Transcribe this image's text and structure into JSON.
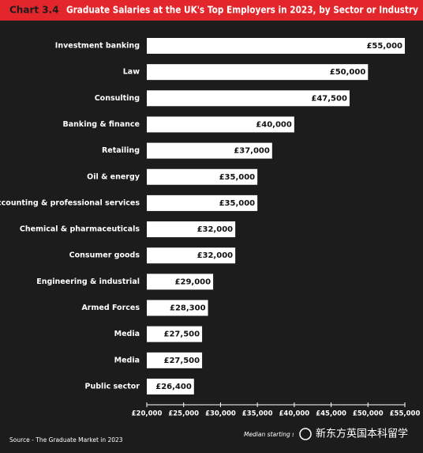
{
  "chart_data": {
    "type": "hbar",
    "chart_number": "Chart 3.4",
    "title": "Graduate Salaries at the UK's Top Employers in 2023, by Sector or Industry",
    "categories": [
      "Investment banking",
      "Law",
      "Consulting",
      "Banking & finance",
      "Retailing",
      "Oil & energy",
      "Accounting & professional services",
      "Chemical & pharmaceuticals",
      "Consumer goods",
      "Engineering & industrial",
      "Armed Forces",
      "Media",
      "Media",
      "Public sector"
    ],
    "values": [
      55000,
      50000,
      47500,
      40000,
      37000,
      35000,
      35000,
      32000,
      32000,
      29000,
      28300,
      27500,
      27500,
      26400
    ],
    "value_labels": [
      "£55,000",
      "£50,000",
      "£47,500",
      "£40,000",
      "£37,000",
      "£35,000",
      "£35,000",
      "£32,000",
      "£32,000",
      "£29,000",
      "£28,300",
      "£27,500",
      "£27,500",
      "£26,400"
    ],
    "color": "#ffffff",
    "xlim": [
      20000,
      55000
    ],
    "xticks": [
      {
        "value": 20000,
        "label": "£20,000"
      },
      {
        "value": 25000,
        "label": "£25,000"
      },
      {
        "value": 30000,
        "label": "£30,000"
      },
      {
        "value": 35000,
        "label": "£35,000"
      },
      {
        "value": 40000,
        "label": "£40,000"
      },
      {
        "value": 45000,
        "label": "£45,000"
      },
      {
        "value": 50000,
        "label": "£50,000"
      },
      {
        "value": 55000,
        "label": "£55,000"
      }
    ],
    "x_label": "Median starting salary",
    "source": "Source - The Graduate Market in 2023",
    "watermark": "新东方英国本科留学"
  }
}
